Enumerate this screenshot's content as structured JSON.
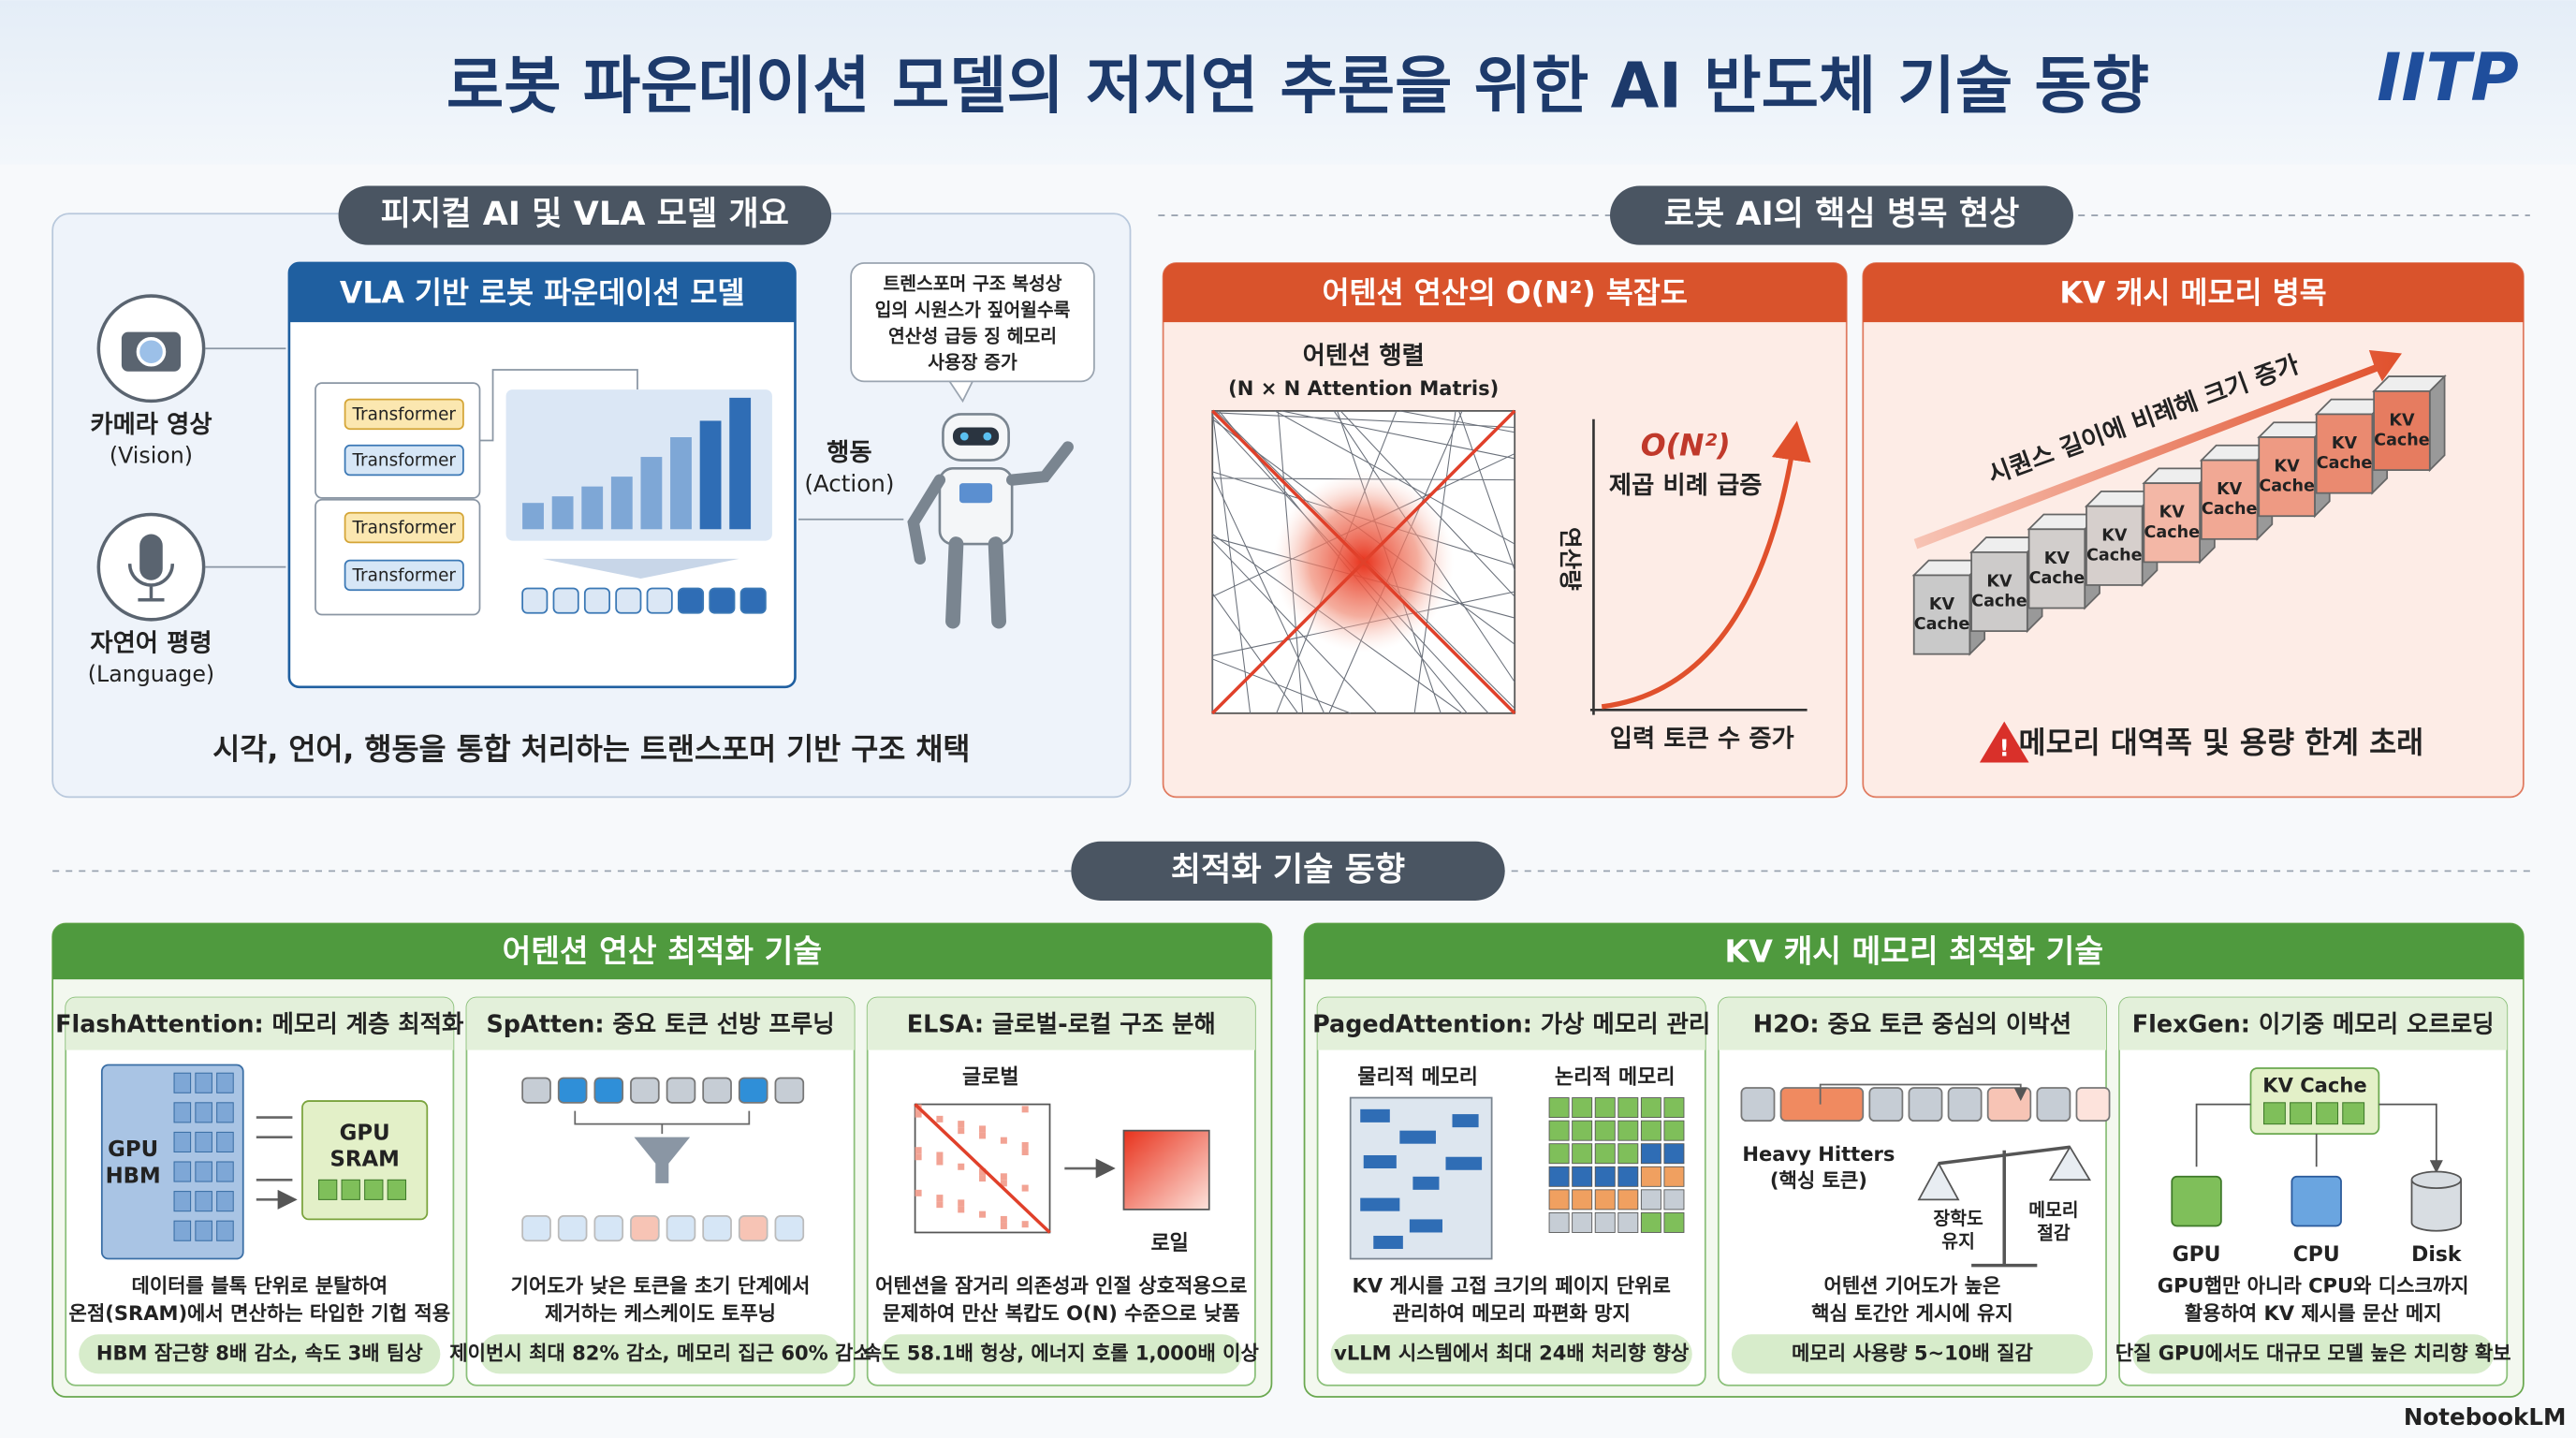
{
  "header": {
    "title": "로봇 파운데이션 모델의 저지연 추론을 위한 AI 반도체 기술 동향",
    "logo": "IITP"
  },
  "overview": {
    "title": "피지컬 AI 및 VLA 모델 개요",
    "inputs": [
      {
        "label": "카메라 영상",
        "sub": "(Vision)"
      },
      {
        "label": "자연어 평령",
        "sub": "(Language)"
      }
    ],
    "model_title": "VLA 기반 로봇 파운데이션 모델",
    "transformer_blocks": [
      "Transformer",
      "Transformer",
      "Transformer",
      "Transformer"
    ],
    "action": {
      "label": "행동",
      "sub": "(Action)"
    },
    "bubble": [
      "트렌스포머 구조 복성상",
      "입의 시원스가 짚어윌수룩",
      "연산성 급등 징 헤모리",
      "사용장 증가"
    ],
    "caption": "시각, 언어, 행동을 통합 처리하는 트랜스포머 기반 구조 채택"
  },
  "bottleneck": {
    "title": "로봇 AI의 핵심 병목 현상",
    "attention": {
      "title": "어텐션 연산의 O(N²) 복잡도",
      "matrix_title": "어텐션 행렬",
      "matrix_sub": "(N × N Attention Matris)",
      "curve_label": "O(N²)",
      "curve_note": "제곱 비례 급증",
      "y_axis": "연산량",
      "x_axis": "입력 토큰 수 증가"
    },
    "kv": {
      "title": "KV 캐시 메모리 병목",
      "arrow_label": "시퀀스 길이에 비례헤 크기 증가",
      "cubes": [
        [
          "KV",
          "Cache"
        ],
        [
          "KV",
          "Cache"
        ],
        [
          "KV",
          "Cache"
        ],
        [
          "KV",
          "Cache"
        ],
        [
          "KV",
          "Cache"
        ],
        [
          "KV",
          "Cache"
        ],
        [
          "KV",
          "Cache"
        ],
        [
          "KV",
          "Cache"
        ],
        [
          "KV",
          "Cache"
        ]
      ],
      "warning": "메모리 대역폭 및 용량 한계 초래"
    }
  },
  "optimization": {
    "title": "최적화 기술 동향",
    "groups": [
      {
        "title": "어텐션 연산 최적화 기술",
        "cards": [
          {
            "title": "FlashAttention: 메모리 계층 최적화",
            "labels": [
              "GPU",
              "HBM",
              "GPU",
              "SRAM"
            ],
            "desc": [
              "데이터를 블톡 단위로 분탈하여",
              "온점(SRAM)에서 면산하는 타입한 기헙 적용"
            ],
            "badge": "HBM 잠근향 8배 감소, 속도 3배 팀상"
          },
          {
            "title": "SpAtten: 중요 토큰 선방 프루닝",
            "desc": [
              "기어도가 낮은 토큰을 초기 단계에서",
              "제거하는 케스케이도 토푸닝"
            ],
            "badge": "제이번시 최대 82% 감소, 메모리 집근 60% 감소"
          },
          {
            "title": "ELSA: 글로벌-로컬 구조 분해",
            "labels": [
              "글로벌",
              "로일"
            ],
            "desc": [
              "어텐션을 잠거리 의존성과 인절 상호적용으로",
              "문제하여 만산 복캅도 O(N) 수준으로 낮품"
            ],
            "badge": "속도 58.1배 헝상, 에너지 호롤 1,000배 이상"
          }
        ]
      },
      {
        "title": "KV 캐시 메모리 최적화 기술",
        "cards": [
          {
            "title": "PagedAttention: 가상 메모리 관리",
            "labels": [
              "물리적 메모리",
              "논리적 메모리"
            ],
            "desc": [
              "KV 게시를 고접 크기의 페이지 단위로",
              "관리하여 메모리 파편화 망지"
            ],
            "badge": "vLLM 시스템에서 최대 24배 처리향 향상"
          },
          {
            "title": "H2O: 중요 토큰 중심의 이박션",
            "labels": [
              "Heavy Hitters",
              "(핵싱 토큰)",
              "장학도",
              "유지",
              "메모리",
              "절감"
            ],
            "desc": [
              "어텐션 기어도가 높은",
              "핵심 토간안 게시에 유지"
            ],
            "badge": "메모리 사용량 5~10배 질감"
          },
          {
            "title": "FlexGen: 이기중 메모리 오르로딩",
            "labels": [
              "KV Cache",
              "GPU",
              "CPU",
              "Disk"
            ],
            "desc": [
              "GPU햅만 아니라 CPU와 디스크까지",
              "활용하여 KV 제시를 문산 메지"
            ],
            "badge": "단질 GPU에서도 대규모 모델 높은 치리향 확보"
          }
        ]
      }
    ]
  },
  "footer": {
    "brand": "NotebookLM"
  }
}
